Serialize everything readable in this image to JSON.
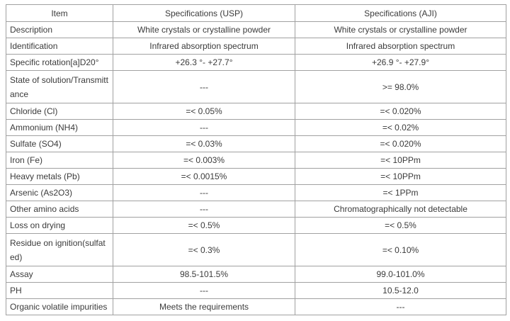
{
  "colors": {
    "border": "#a1a1a1",
    "text": "#3b3b3b",
    "background": "#ffffff"
  },
  "table": {
    "headers": [
      "Item",
      "Specifications (USP)",
      "Specifications (AJI)"
    ],
    "rows": [
      {
        "item": "Description",
        "usp": "White crystals or crystalline powder",
        "aji": "White crystals or crystalline powder",
        "tall": false
      },
      {
        "item": "Identification",
        "usp": "Infrared absorption spectrum",
        "aji": "Infrared absorption spectrum",
        "tall": false
      },
      {
        "item": "Specific rotation[a]D20°",
        "usp": "+26.3 °- +27.7°",
        "aji": "+26.9 °- +27.9°",
        "tall": false
      },
      {
        "item": "State of solution/Transmittance",
        "usp": "---",
        "aji": ">= 98.0%",
        "tall": true
      },
      {
        "item": "Chloride (Cl)",
        "usp": "=< 0.05%",
        "aji": "=< 0.020%",
        "tall": false
      },
      {
        "item": "Ammonium (NH4)",
        "usp": "---",
        "aji": "=< 0.02%",
        "tall": false
      },
      {
        "item": "Sulfate (SO4)",
        "usp": "=< 0.03%",
        "aji": "=< 0.020%",
        "tall": false
      },
      {
        "item": "Iron (Fe)",
        "usp": "=< 0.003%",
        "aji": "=< 10PPm",
        "tall": false
      },
      {
        "item": "Heavy metals (Pb)",
        "usp": "=< 0.0015%",
        "aji": "=< 10PPm",
        "tall": false
      },
      {
        "item": "Arsenic (As2O3)",
        "usp": "---",
        "aji": "=< 1PPm",
        "tall": false
      },
      {
        "item": "Other amino acids",
        "usp": "---",
        "aji": "Chromatographically not detectable",
        "tall": false
      },
      {
        "item": "Loss on drying",
        "usp": "=< 0.5%",
        "aji": "=< 0.5%",
        "tall": false
      },
      {
        "item": "Residue on ignition(sulfated)",
        "usp": "=< 0.3%",
        "aji": "=< 0.10%",
        "tall": true
      },
      {
        "item": "Assay",
        "usp": "98.5-101.5%",
        "aji": "99.0-101.0%",
        "tall": false
      },
      {
        "item": "PH",
        "usp": "---",
        "aji": "10.5-12.0",
        "tall": false
      },
      {
        "item": "Organic volatile impurities",
        "usp": "Meets the requirements",
        "aji": "---",
        "tall": false
      }
    ]
  }
}
